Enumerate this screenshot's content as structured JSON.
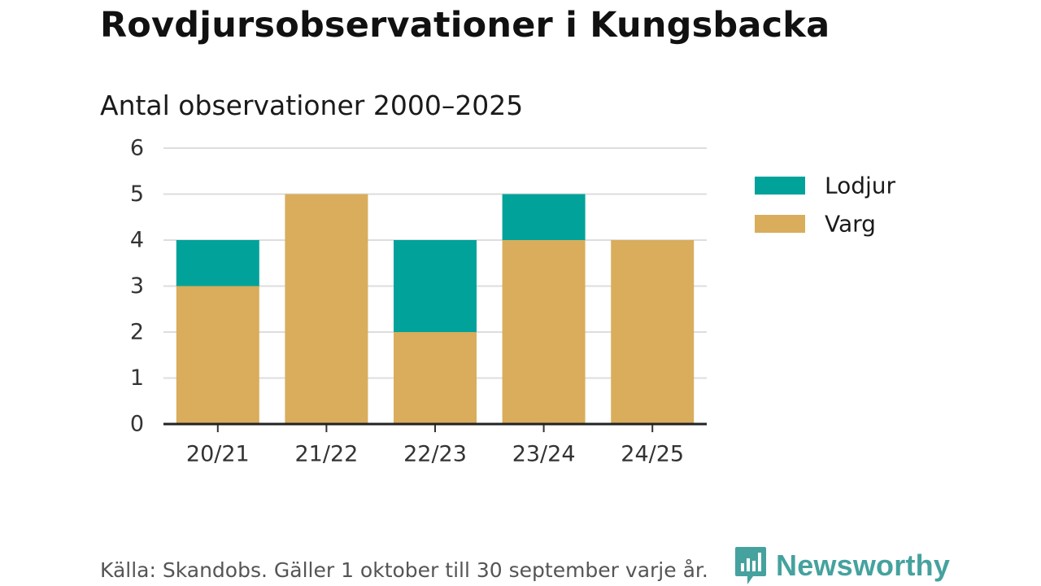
{
  "header": {
    "title": "Rovdjursobservationer i Kungsbacka",
    "subtitle": "Antal observationer 2000–2025"
  },
  "footer": {
    "source": "Källa: Skandobs. Gäller 1 oktober till 30 september varje år.",
    "brand": "Newsworthy"
  },
  "colors": {
    "Lodjur": "#00a29a",
    "Varg": "#d9ad5c",
    "brand": "#45a29e"
  },
  "chart_data": {
    "type": "bar",
    "stacked": true,
    "title": "Rovdjursobservationer i Kungsbacka",
    "subtitle": "Antal observationer 2000–2025",
    "xlabel": "",
    "ylabel": "",
    "ylim": [
      0,
      6
    ],
    "yticks": [
      0,
      1,
      2,
      3,
      4,
      5,
      6
    ],
    "grid": true,
    "legend_position": "right",
    "categories": [
      "20/21",
      "21/22",
      "22/23",
      "23/24",
      "24/25"
    ],
    "series": [
      {
        "name": "Varg",
        "values": [
          3,
          5,
          2,
          4,
          4
        ]
      },
      {
        "name": "Lodjur",
        "values": [
          1,
          0,
          2,
          1,
          0
        ]
      }
    ],
    "legend_order": [
      "Lodjur",
      "Varg"
    ]
  }
}
